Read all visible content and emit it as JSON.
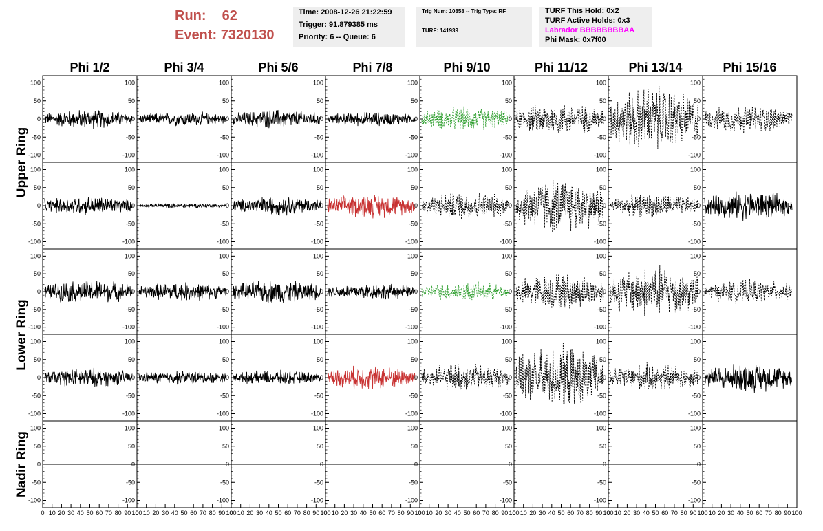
{
  "header": {
    "run_label": "Run:",
    "run_value": "62",
    "event_label": "Event:",
    "event_value": "7320130",
    "info_panel": {
      "time": "Time: 2008-12-26 21:22:59",
      "trigger": "Trigger: 91.879385 ms",
      "priority": "Priority: 6 -- Queue: 6"
    },
    "trig_panel": {
      "trig": "Trig Num: 10858 -- Trig Type: RF",
      "turf": "TURF: 141939"
    },
    "turf_panel": {
      "this_hold": "TURF This Hold: 0x2",
      "active_holds": "TURF Active Holds: 0x3",
      "labrador": "Labrador BBBBBBBBAA",
      "phi_mask": "Phi Mask: 0x7f00"
    }
  },
  "colors": {
    "run_text": "#c0504d",
    "labrador_text": "#ff00ff",
    "panel_bg": "#eeeeee",
    "trace_black": "#000000",
    "trace_green": "#2e9e2e",
    "trace_red": "#c83232"
  },
  "columns": [
    "Phi 1/2",
    "Phi 3/4",
    "Phi 5/6",
    "Phi 7/8",
    "Phi 9/10",
    "Phi 11/12",
    "Phi 13/14",
    "Phi 15/16"
  ],
  "rows": [
    {
      "label": "Upper Ring",
      "rings": [
        "upper-a",
        "upper-b"
      ]
    },
    {
      "label": "Lower Ring",
      "rings": [
        "lower-a",
        "lower-b"
      ]
    },
    {
      "label": "Nadir Ring",
      "rings": [
        "nadir"
      ]
    }
  ],
  "chart_data": {
    "type": "line",
    "ylim": [
      -120,
      120
    ],
    "xlim": [
      0,
      100
    ],
    "y_ticks": [
      -100,
      -50,
      0,
      50,
      100
    ],
    "x_tick_labels": [
      "0",
      "10",
      "20",
      "30",
      "40",
      "50",
      "60",
      "70",
      "80",
      "90",
      "100"
    ],
    "panel_style": [
      [
        "solid",
        "solid",
        "solid",
        "solid",
        "dashed-green",
        "dashed",
        "dashed",
        "dashed"
      ],
      [
        "solid",
        "solid",
        "solid",
        "solid-red",
        "dashed",
        "dashed",
        "dashed",
        "solid"
      ],
      [
        "solid",
        "solid",
        "solid",
        "solid",
        "dashed-green",
        "dashed",
        "dashed",
        "dashed"
      ],
      [
        "solid",
        "solid",
        "solid",
        "solid-red",
        "dashed",
        "dashed",
        "dashed",
        "solid"
      ],
      [
        "flat",
        "flat",
        "flat",
        "flat",
        "flat",
        "flat",
        "flat",
        "none"
      ]
    ],
    "panel_amplitude": [
      [
        20,
        15,
        20,
        15,
        25,
        35,
        70,
        30
      ],
      [
        20,
        5,
        20,
        25,
        30,
        60,
        25,
        30
      ],
      [
        25,
        20,
        25,
        18,
        20,
        40,
        55,
        25
      ],
      [
        20,
        15,
        15,
        25,
        30,
        65,
        30,
        30
      ],
      [
        0,
        0,
        0,
        0,
        0,
        0,
        0,
        0
      ]
    ]
  }
}
